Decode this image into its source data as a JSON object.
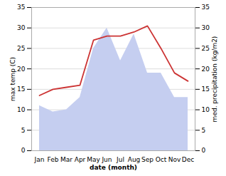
{
  "chart_data": {
    "type": "line",
    "xlabel": "date (month)",
    "ylabel": "max temp (C)",
    "y2label": "med. precipitation (kg/m2)",
    "categories": [
      "Jan",
      "Feb",
      "Mar",
      "Apr",
      "May",
      "Jun",
      "Jul",
      "Aug",
      "Sep",
      "Oct",
      "Nov",
      "Dec"
    ],
    "series": [
      {
        "type": "area",
        "axis": "y2",
        "color": "#c5cef0",
        "values": [
          11.0,
          9.5,
          10.0,
          13.0,
          25.0,
          30.0,
          22.0,
          28.5,
          19.0,
          19.0,
          13.0,
          13.0
        ]
      },
      {
        "type": "line",
        "color": "#cc3333",
        "values": [
          13.5,
          15.0,
          15.5,
          16.0,
          27.0,
          28.0,
          28.0,
          29.0,
          30.5,
          25.0,
          19.0,
          17.0
        ]
      }
    ],
    "ylim": [
      0,
      35
    ],
    "yticks": [
      0,
      5,
      10,
      15,
      20,
      25,
      30,
      35
    ],
    "y2lim": [
      0,
      35
    ],
    "y2ticks": [
      0,
      5,
      10,
      15,
      20,
      25,
      30,
      35
    ],
    "grid": true
  }
}
